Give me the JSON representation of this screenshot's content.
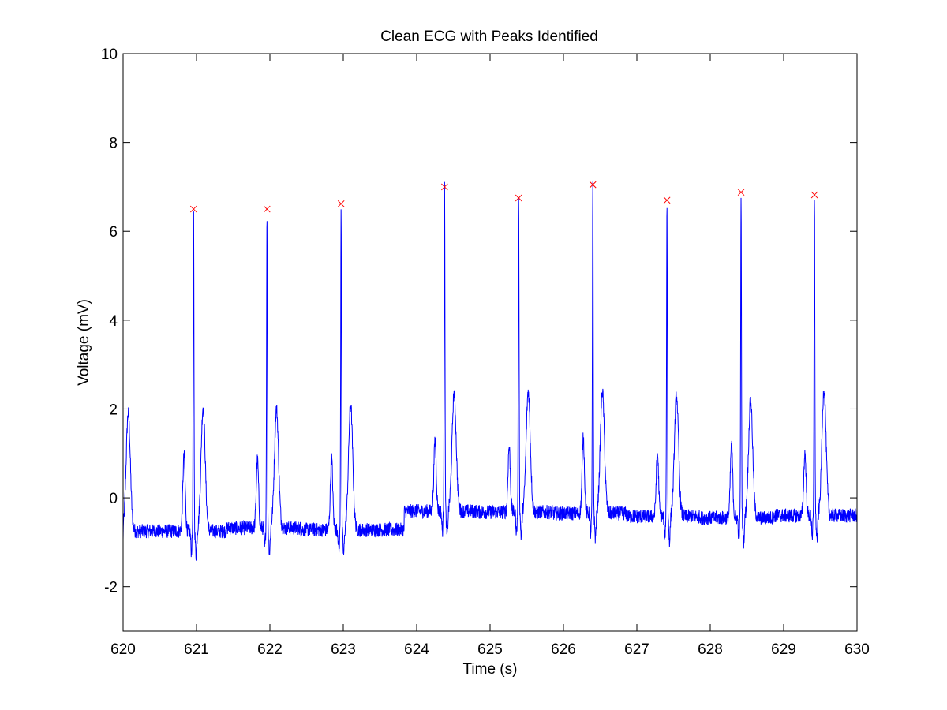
{
  "window": {
    "background": "#ffffff"
  },
  "chart_data": {
    "type": "line",
    "title": "Clean ECG with Peaks Identified",
    "xlabel": "Time (s)",
    "ylabel": "Voltage (mV)",
    "xlim": [
      620,
      630
    ],
    "ylim": [
      -3,
      10
    ],
    "xticks": [
      620,
      621,
      622,
      623,
      624,
      625,
      626,
      627,
      628,
      629,
      630
    ],
    "yticks": [
      -2,
      0,
      2,
      4,
      6,
      8,
      10
    ],
    "xtick_labels": [
      "620",
      "621",
      "622",
      "623",
      "624",
      "625",
      "626",
      "627",
      "628",
      "629",
      "630"
    ],
    "ytick_labels": [
      "-2",
      "0",
      "2",
      "4",
      "6",
      "8",
      "10"
    ],
    "grid": false,
    "box": true,
    "series": [
      {
        "type": "line",
        "color": "#0000ff",
        "beats": [
          {
            "r_time": 620.96,
            "r_amp": 6.5,
            "baseline": -0.75,
            "p_amp": 0.95,
            "t_amp": 2.05
          },
          {
            "r_time": 621.96,
            "r_amp": 6.5,
            "baseline": -0.68,
            "p_amp": 0.85,
            "t_amp": 2.0
          },
          {
            "r_time": 622.97,
            "r_amp": 6.62,
            "baseline": -0.72,
            "p_amp": 0.9,
            "t_amp": 2.1
          },
          {
            "r_time": 624.38,
            "r_amp": 7.0,
            "baseline": -0.3,
            "p_amp": 1.3,
            "t_amp": 2.35
          },
          {
            "r_time": 625.39,
            "r_amp": 6.75,
            "baseline": -0.32,
            "p_amp": 1.15,
            "t_amp": 2.4
          },
          {
            "r_time": 626.4,
            "r_amp": 7.05,
            "baseline": -0.35,
            "p_amp": 1.35,
            "t_amp": 2.4
          },
          {
            "r_time": 627.41,
            "r_amp": 6.7,
            "baseline": -0.42,
            "p_amp": 1.0,
            "t_amp": 2.3
          },
          {
            "r_time": 628.42,
            "r_amp": 6.88,
            "baseline": -0.45,
            "p_amp": 1.2,
            "t_amp": 2.2
          },
          {
            "r_time": 629.42,
            "r_amp": 6.82,
            "baseline": -0.4,
            "p_amp": 1.0,
            "t_amp": 2.45
          }
        ],
        "initial_t_wave": {
          "time": 620.07,
          "amp": 1.9
        },
        "baseline_step_time": 623.6
      },
      {
        "type": "scatter",
        "name": "Peaks",
        "marker": "x",
        "color": "#ff0000",
        "x": [
          620.96,
          621.96,
          622.97,
          624.38,
          625.39,
          626.4,
          627.41,
          628.42,
          629.42
        ],
        "y": [
          6.5,
          6.5,
          6.62,
          7.0,
          6.75,
          7.05,
          6.7,
          6.88,
          6.82
        ]
      }
    ]
  }
}
